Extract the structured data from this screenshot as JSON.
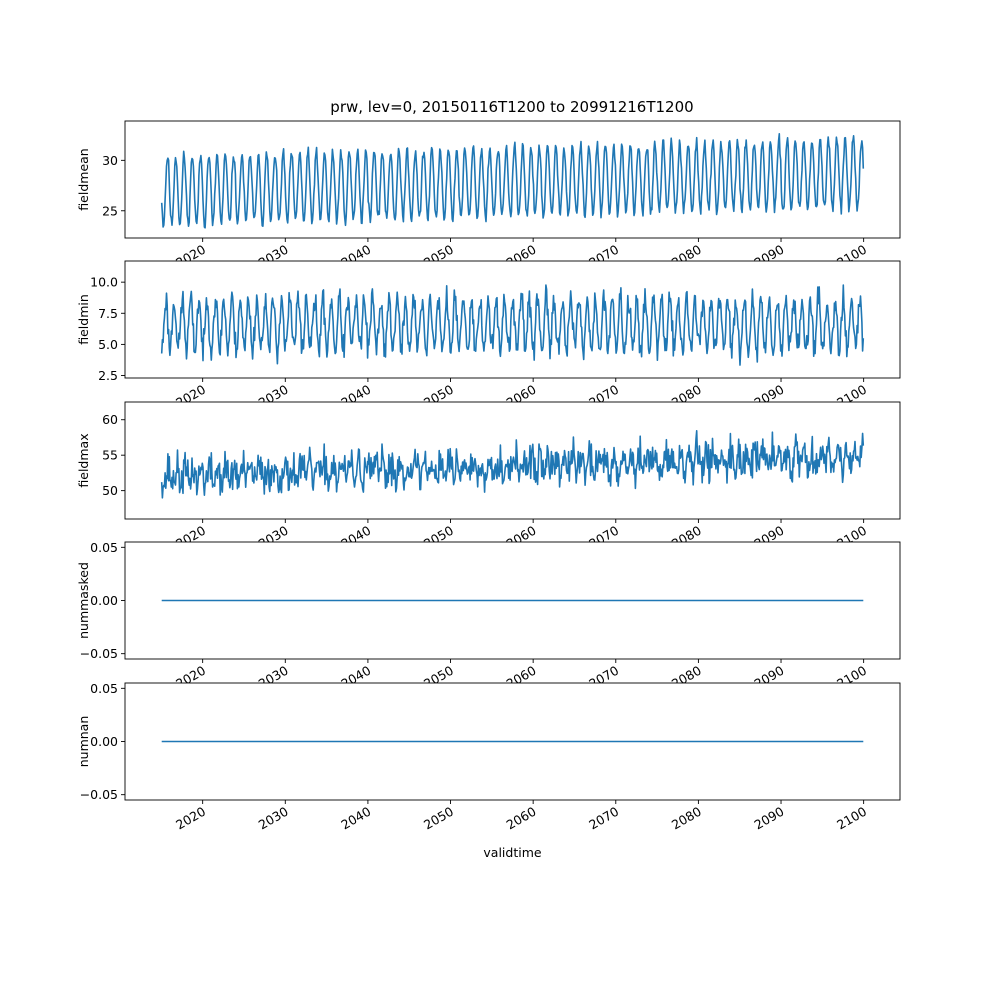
{
  "figure_title": "prw, lev=0, 20150116T1200 to 20991216T1200",
  "colors": {
    "series": "#1f77b4"
  },
  "chart_data": [
    {
      "type": "line",
      "name": "fieldmean",
      "ylabel": "fieldmean",
      "xlabel": "",
      "xlim": [
        2010.6,
        2104.4
      ],
      "ylim": [
        22.3,
        33.9
      ],
      "xticks": [
        2020,
        2030,
        2040,
        2050,
        2060,
        2070,
        2080,
        2090,
        2100
      ],
      "xtick_labels": [
        "2020",
        "2030",
        "2040",
        "2050",
        "2060",
        "2070",
        "2080",
        "2090",
        "2100"
      ],
      "yticks": [
        25,
        30
      ],
      "ytick_labels": [
        "25",
        "30"
      ],
      "x_start": 2015.04,
      "x_end": 2099.96,
      "seasonal": {
        "base": 27.0,
        "trend_per_year": 0.02,
        "amplitude": 3.4,
        "phase_year": 2015.5,
        "noise": 0.5,
        "seed": 11
      }
    },
    {
      "type": "line",
      "name": "fieldmin",
      "ylabel": "fieldmin",
      "xlabel": "",
      "xlim": [
        2010.6,
        2104.4
      ],
      "ylim": [
        2.3,
        11.7
      ],
      "xticks": [
        2020,
        2030,
        2040,
        2050,
        2060,
        2070,
        2080,
        2090,
        2100
      ],
      "xtick_labels": [
        "2020",
        "2030",
        "2040",
        "2050",
        "2060",
        "2070",
        "2080",
        "2090",
        "2100"
      ],
      "yticks": [
        2.5,
        5.0,
        7.5,
        10.0
      ],
      "ytick_labels": [
        "2.5",
        "5.0",
        "7.5",
        "10.0"
      ],
      "x_start": 2015.04,
      "x_end": 2099.96,
      "seasonal": {
        "base": 6.6,
        "trend_per_year": 0.0,
        "amplitude": 2.0,
        "phase_year": 2015.3,
        "noise": 0.9,
        "seed": 23
      }
    },
    {
      "type": "line",
      "name": "fieldmax",
      "ylabel": "fieldmax",
      "xlabel": "",
      "xlim": [
        2010.6,
        2104.4
      ],
      "ylim": [
        46.0,
        62.5
      ],
      "xticks": [
        2020,
        2030,
        2040,
        2050,
        2060,
        2070,
        2080,
        2090,
        2100
      ],
      "xtick_labels": [
        "2020",
        "2030",
        "2040",
        "2050",
        "2060",
        "2070",
        "2080",
        "2090",
        "2100"
      ],
      "yticks": [
        50,
        55,
        60
      ],
      "ytick_labels": [
        "50",
        "55",
        "60"
      ],
      "x_start": 2015.04,
      "x_end": 2099.96,
      "seasonal": {
        "base": 52.0,
        "trend_per_year": 0.035,
        "amplitude": 1.0,
        "phase_year": 2015.6,
        "noise": 2.2,
        "seed": 37
      }
    },
    {
      "type": "line",
      "name": "nummasked",
      "ylabel": "nummasked",
      "xlabel": "",
      "xlim": [
        2010.6,
        2104.4
      ],
      "ylim": [
        -0.055,
        0.055
      ],
      "xticks": [
        2020,
        2030,
        2040,
        2050,
        2060,
        2070,
        2080,
        2090,
        2100
      ],
      "xtick_labels": [
        "2020",
        "2030",
        "2040",
        "2050",
        "2060",
        "2070",
        "2080",
        "2090",
        "2100"
      ],
      "yticks": [
        -0.05,
        0.0,
        0.05
      ],
      "ytick_labels": [
        "−0.05",
        "0.00",
        "0.05"
      ],
      "x": [
        2015.04,
        2099.96
      ],
      "values": [
        0.0,
        0.0
      ]
    },
    {
      "type": "line",
      "name": "numnan",
      "ylabel": "numnan",
      "xlabel": "validtime",
      "xlim": [
        2010.6,
        2104.4
      ],
      "ylim": [
        -0.055,
        0.055
      ],
      "xticks": [
        2020,
        2030,
        2040,
        2050,
        2060,
        2070,
        2080,
        2090,
        2100
      ],
      "xtick_labels": [
        "2020",
        "2030",
        "2040",
        "2050",
        "2060",
        "2070",
        "2080",
        "2090",
        "2100"
      ],
      "yticks": [
        -0.05,
        0.0,
        0.05
      ],
      "ytick_labels": [
        "−0.05",
        "0.00",
        "0.05"
      ],
      "x": [
        2015.04,
        2099.96
      ],
      "values": [
        0.0,
        0.0
      ]
    }
  ]
}
